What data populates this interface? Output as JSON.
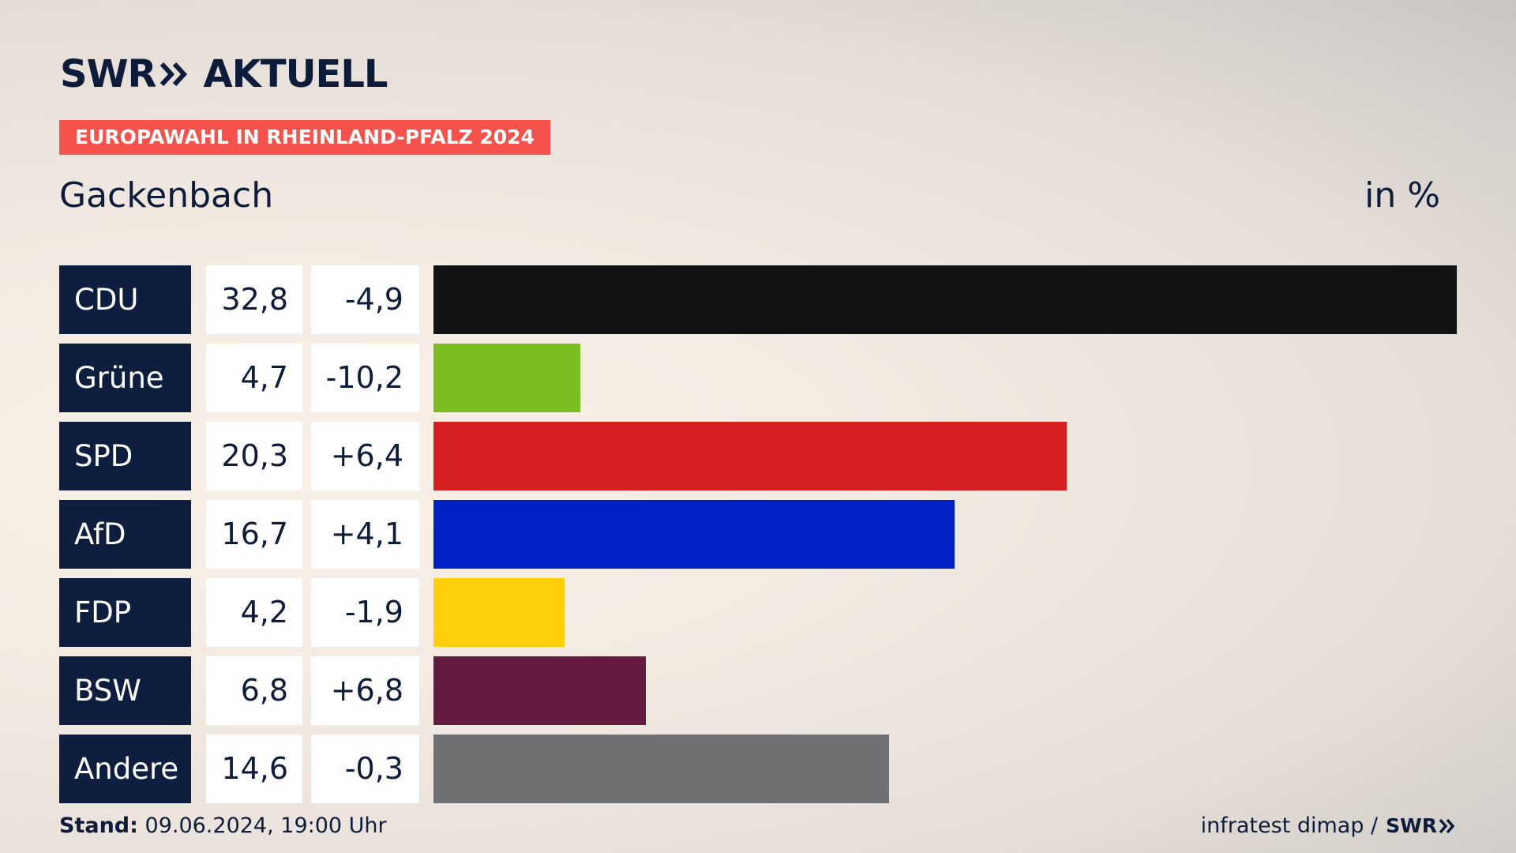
{
  "brand": {
    "name_left": "SWR",
    "name_right": "AKTUELL",
    "chevron_icon": "double-chevron-right-icon"
  },
  "tag": "EUROPAWAHL IN RHEINLAND-PFALZ 2024",
  "place": "Gackenbach",
  "unit": "in %",
  "chart_data": {
    "type": "bar",
    "orientation": "horizontal",
    "categories": [
      "CDU",
      "Grüne",
      "SPD",
      "AfD",
      "FDP",
      "BSW",
      "Andere"
    ],
    "values": [
      32.8,
      4.7,
      20.3,
      16.7,
      4.2,
      6.8,
      14.6
    ],
    "value_labels": [
      "32,8",
      "4,7",
      "20,3",
      "16,7",
      "4,2",
      "6,8",
      "14,6"
    ],
    "changes": [
      -4.9,
      -10.2,
      6.4,
      4.1,
      -1.9,
      6.8,
      -0.3
    ],
    "change_labels": [
      "-4,9",
      "-10,2",
      "+6,4",
      "+4,1",
      "-1,9",
      "+6,8",
      "-0,3"
    ],
    "colors": [
      "#121212",
      "#79bd1f",
      "#d51f20",
      "#0021c6",
      "#ffcf0a",
      "#651a3f",
      "#6f7072"
    ],
    "xlim": [
      0,
      32.8
    ]
  },
  "footer": {
    "stand_label": "Stand:",
    "stand_value": "09.06.2024, 19:00 Uhr",
    "source": "infratest dimap /",
    "source_brand": "SWR"
  }
}
